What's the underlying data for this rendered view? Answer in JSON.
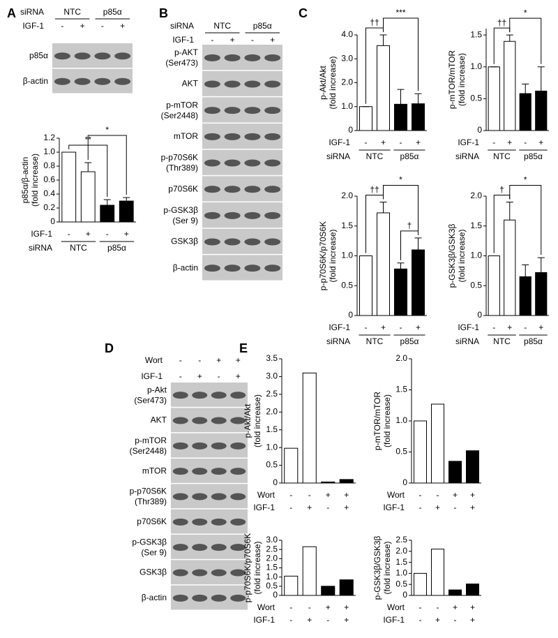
{
  "panel_labels": [
    "A",
    "B",
    "C",
    "D",
    "E"
  ],
  "blots": [
    {
      "header": [
        {
          "name": "siRNA",
          "groups": [
            "NTC",
            "p85α"
          ]
        },
        {
          "name": "IGF-1",
          "labels": [
            "-",
            "+",
            "-",
            "+"
          ]
        }
      ],
      "rows": [
        {
          "label": "p85α"
        },
        {
          "label": "β-actin"
        }
      ]
    },
    {
      "header": [
        {
          "name": "siRNA",
          "groups": [
            "NTC",
            "p85α"
          ]
        },
        {
          "name": "IGF-1",
          "labels": [
            "-",
            "+",
            "-",
            "+"
          ]
        }
      ],
      "rows": [
        {
          "label": "p-AKT",
          "sublabel": "(Ser473)"
        },
        {
          "label": "AKT"
        },
        {
          "label": "p-mTOR",
          "sublabel": "(Ser2448)"
        },
        {
          "label": "mTOR"
        },
        {
          "label": "p-p70S6K",
          "sublabel": "(Thr389)"
        },
        {
          "label": "p70S6K"
        },
        {
          "label": "p-GSK3β",
          "sublabel": "(Ser 9)"
        },
        {
          "label": "GSK3β"
        },
        {
          "label": "β-actin"
        }
      ]
    },
    {
      "header": [
        {
          "name": "Wort",
          "labels": [
            "-",
            "-",
            "+",
            "+"
          ]
        },
        {
          "name": "IGF-1",
          "labels": [
            "-",
            "+",
            "-",
            "+"
          ]
        }
      ],
      "rows": [
        {
          "label": "p-Akt",
          "sublabel": "(Ser473)"
        },
        {
          "label": "AKT"
        },
        {
          "label": "p-mTOR",
          "sublabel": "(Ser2448)"
        },
        {
          "label": "mTOR"
        },
        {
          "label": "p-p70S6K",
          "sublabel": "(Thr389)"
        },
        {
          "label": "p70S6K"
        },
        {
          "label": "p-GSK3β",
          "sublabel": "(Ser 9)"
        },
        {
          "label": "GSK3β"
        },
        {
          "label": "β-actin"
        }
      ]
    }
  ],
  "chart_data": [
    {
      "type": "bar",
      "ylabel": "p85α/β-actin",
      "ylabel_sub": "(fold increase)",
      "values": [
        1.0,
        0.72,
        0.24,
        0.3
      ],
      "errors": [
        0,
        0.13,
        0.08,
        0.05
      ],
      "colors": [
        "#ffffff",
        "#ffffff",
        "#000000",
        "#000000"
      ],
      "ylim": [
        0,
        1.2
      ],
      "yticks": [
        0,
        0.2,
        0.4,
        0.6,
        0.8,
        {
          "value": 1,
          "label": "1.0"
        },
        1.2
      ],
      "conditions": [
        {
          "name": "IGF-1",
          "labels": [
            "-",
            "+",
            "-",
            "+"
          ]
        }
      ],
      "group": {
        "name": "siRNA",
        "labels": [
          "NTC",
          "p85α"
        ]
      },
      "annotations": [
        {
          "text": "**",
          "pair": [
            0,
            2
          ]
        },
        {
          "text": "*",
          "pair": [
            1,
            3
          ]
        }
      ]
    },
    {
      "type": "bar",
      "ylabel": "p-Akt/Akt",
      "ylabel_sub": "(fold increase)",
      "values": [
        1.0,
        3.55,
        1.1,
        1.12
      ],
      "errors": [
        0,
        0.45,
        0.62,
        0.42
      ],
      "colors": [
        "#ffffff",
        "#ffffff",
        "#000000",
        "#000000"
      ],
      "ylim": [
        0,
        4
      ],
      "yticks": [
        0,
        {
          "value": 1,
          "label": "1.0"
        },
        {
          "value": 2,
          "label": "2.0"
        },
        {
          "value": 3,
          "label": "3.0"
        },
        {
          "value": 4,
          "label": "4.0"
        }
      ],
      "conditions": [
        {
          "name": "IGF-1",
          "labels": [
            "-",
            "+",
            "-",
            "+"
          ]
        }
      ],
      "group": {
        "name": "siRNA",
        "labels": [
          "NTC",
          "p85α"
        ]
      },
      "annotations": [
        {
          "text": "††",
          "pair": [
            0,
            1
          ]
        },
        {
          "text": "***",
          "pair": [
            1,
            3
          ]
        }
      ]
    },
    {
      "type": "bar",
      "ylabel": "p-mTOR/mTOR",
      "ylabel_sub": "(fold increase)",
      "values": [
        1.0,
        1.4,
        0.58,
        0.62
      ],
      "errors": [
        0,
        0.1,
        0.15,
        0.38
      ],
      "colors": [
        "#ffffff",
        "#ffffff",
        "#000000",
        "#000000"
      ],
      "ylim": [
        0,
        1.6
      ],
      "yticks": [
        0,
        0.5,
        {
          "value": 1,
          "label": "1.0"
        },
        1.5
      ],
      "conditions": [
        {
          "name": "IGF-1",
          "labels": [
            "-",
            "+",
            "-",
            "+"
          ]
        }
      ],
      "group": {
        "name": "siRNA",
        "labels": [
          "NTC",
          "p85α"
        ]
      },
      "annotations": [
        {
          "text": "††",
          "pair": [
            0,
            1
          ]
        },
        {
          "text": "*",
          "pair": [
            1,
            3
          ]
        }
      ]
    },
    {
      "type": "bar",
      "ylabel": "p-p70S6K/p70S6K",
      "ylabel_sub": "(fold increase)",
      "values": [
        1.0,
        1.72,
        0.78,
        1.1
      ],
      "errors": [
        0,
        0.18,
        0.1,
        0.2
      ],
      "colors": [
        "#ffffff",
        "#ffffff",
        "#000000",
        "#000000"
      ],
      "ylim": [
        0,
        2
      ],
      "yticks": [
        0,
        0.5,
        {
          "value": 1,
          "label": "1.0"
        },
        1.5,
        {
          "value": 2,
          "label": "2.0"
        }
      ],
      "conditions": [
        {
          "name": "IGF-1",
          "labels": [
            "-",
            "+",
            "-",
            "+"
          ]
        }
      ],
      "group": {
        "name": "siRNA",
        "labels": [
          "NTC",
          "p85α"
        ]
      },
      "annotations": [
        {
          "text": "††",
          "pair": [
            0,
            1
          ]
        },
        {
          "text": "†",
          "pair": [
            2,
            3
          ]
        },
        {
          "text": "*",
          "pair": [
            1,
            3
          ]
        }
      ]
    },
    {
      "type": "bar",
      "ylabel": "p-GSK3β/GSK3β",
      "ylabel_sub": "(fold increase)",
      "values": [
        1.0,
        1.6,
        0.65,
        0.72
      ],
      "errors": [
        0,
        0.3,
        0.2,
        0.25
      ],
      "colors": [
        "#ffffff",
        "#ffffff",
        "#000000",
        "#000000"
      ],
      "ylim": [
        0,
        2
      ],
      "yticks": [
        0,
        0.5,
        {
          "value": 1,
          "label": "1.0"
        },
        1.5,
        {
          "value": 2,
          "label": "2.0"
        }
      ],
      "conditions": [
        {
          "name": "IGF-1",
          "labels": [
            "-",
            "+",
            "-",
            "+"
          ]
        }
      ],
      "group": {
        "name": "siRNA",
        "labels": [
          "NTC",
          "p85α"
        ]
      },
      "annotations": [
        {
          "text": "†",
          "pair": [
            0,
            1
          ]
        },
        {
          "text": "*",
          "pair": [
            1,
            3
          ]
        }
      ]
    },
    {
      "type": "bar",
      "ylabel": "p-Akt/Akt",
      "ylabel_sub": "(fold increase)",
      "values": [
        0.98,
        3.1,
        0.03,
        0.1
      ],
      "colors": [
        "#ffffff",
        "#ffffff",
        "#000000",
        "#000000"
      ],
      "ylim": [
        0,
        3.5
      ],
      "yticks": [
        0,
        0.5,
        {
          "value": 1,
          "label": "1.0"
        },
        1.5,
        {
          "value": 2,
          "label": "2.0"
        },
        2.5,
        {
          "value": 3,
          "label": "3.0"
        },
        3.5
      ],
      "conditions": [
        {
          "name": "Wort",
          "labels": [
            "-",
            "-",
            "+",
            "+"
          ]
        },
        {
          "name": "IGF-1",
          "labels": [
            "-",
            "+",
            "-",
            "+"
          ]
        }
      ]
    },
    {
      "type": "bar",
      "ylabel": "p-mTOR/mTOR",
      "ylabel_sub": "(fold increase)",
      "values": [
        1.0,
        1.27,
        0.35,
        0.52
      ],
      "colors": [
        "#ffffff",
        "#ffffff",
        "#000000",
        "#000000"
      ],
      "ylim": [
        0,
        2
      ],
      "yticks": [
        0,
        0.5,
        {
          "value": 1,
          "label": "1.0"
        },
        1.5,
        {
          "value": 2,
          "label": "2.0"
        }
      ],
      "conditions": [
        {
          "name": "Wort",
          "labels": [
            "-",
            "-",
            "+",
            "+"
          ]
        },
        {
          "name": "IGF-1",
          "labels": [
            "-",
            "+",
            "-",
            "+"
          ]
        }
      ]
    },
    {
      "type": "bar",
      "ylabel": "p-p70S6K/p70S6K",
      "ylabel_sub": "(fold increase)",
      "values": [
        1.05,
        2.65,
        0.5,
        0.85
      ],
      "colors": [
        "#ffffff",
        "#ffffff",
        "#000000",
        "#000000"
      ],
      "ylim": [
        0,
        3
      ],
      "yticks": [
        0,
        0.5,
        {
          "value": 1,
          "label": "1.0"
        },
        1.5,
        {
          "value": 2,
          "label": "2.0"
        },
        2.5,
        {
          "value": 3,
          "label": "3.0"
        }
      ],
      "conditions": [
        {
          "name": "Wort",
          "labels": [
            "-",
            "-",
            "+",
            "+"
          ]
        },
        {
          "name": "IGF-1",
          "labels": [
            "-",
            "+",
            "-",
            "+"
          ]
        }
      ]
    },
    {
      "type": "bar",
      "ylabel": "p-GSK3β/GSK3β",
      "ylabel_sub": "(fold increase)",
      "values": [
        1.0,
        2.1,
        0.25,
        0.52
      ],
      "colors": [
        "#ffffff",
        "#ffffff",
        "#000000",
        "#000000"
      ],
      "ylim": [
        0,
        2.5
      ],
      "yticks": [
        0,
        0.5,
        {
          "value": 1,
          "label": "1.0"
        },
        1.5,
        {
          "value": 2,
          "label": "2.0"
        },
        2.5
      ],
      "conditions": [
        {
          "name": "Wort",
          "labels": [
            "-",
            "-",
            "+",
            "+"
          ]
        },
        {
          "name": "IGF-1",
          "labels": [
            "-",
            "+",
            "-",
            "+"
          ]
        }
      ]
    }
  ]
}
